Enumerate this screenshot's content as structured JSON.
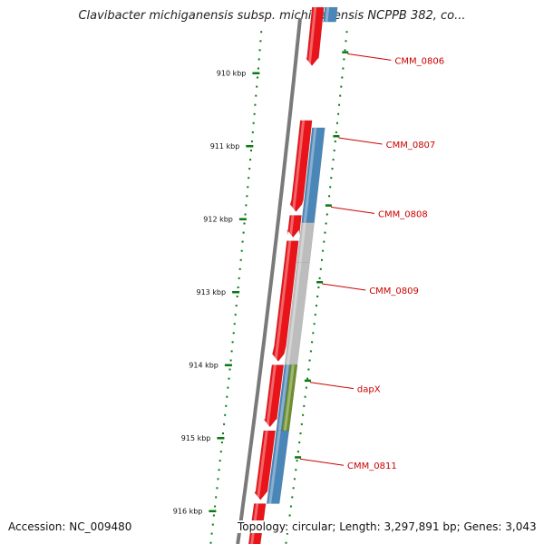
{
  "title": "Clavibacter michiganensis subsp. michiganensis NCPPB 382, co...",
  "footer": {
    "accession": "Accession: NC_009480",
    "topology": "Topology: circular; Length: 3,297,891 bp; Genes: 3,043"
  },
  "colors": {
    "backbone": "#7a7a7a",
    "forward_gene": "#e8141a",
    "reverse_gene": "#4a86b8",
    "pseudo_gene": "#bdbdbd",
    "other_gene": "#6e8f2a",
    "tick": "#0a7a14",
    "label": "#cc0000"
  },
  "chart_data": {
    "type": "genome_map",
    "ticks": [
      {
        "label": "910 kbp",
        "kbp": 910
      },
      {
        "label": "911 kbp",
        "kbp": 911
      },
      {
        "label": "912 kbp",
        "kbp": 912
      },
      {
        "label": "913 kbp",
        "kbp": 913
      },
      {
        "label": "914 kbp",
        "kbp": 914
      },
      {
        "label": "915 kbp",
        "kbp": 915
      },
      {
        "label": "916 kbp",
        "kbp": 916
      }
    ],
    "forward_genes": [
      {
        "start_kbp": 909.1,
        "end_kbp": 909.9
      },
      {
        "start_kbp": 910.65,
        "end_kbp": 911.9
      },
      {
        "start_kbp": 911.95,
        "end_kbp": 912.25
      },
      {
        "start_kbp": 912.3,
        "end_kbp": 913.95
      },
      {
        "start_kbp": 914.0,
        "end_kbp": 914.85
      },
      {
        "start_kbp": 914.9,
        "end_kbp": 915.85
      },
      {
        "start_kbp": 915.9,
        "end_kbp": 916.8
      }
    ],
    "reverse_genes": [
      {
        "name": "",
        "start_kbp": 909.1,
        "end_kbp": 909.3,
        "kind": "reverse"
      },
      {
        "name": "CMM_0806",
        "start_kbp": 909.3,
        "end_kbp": 909.75,
        "kind": "none"
      },
      {
        "name": "CMM_0807",
        "start_kbp": 910.75,
        "end_kbp": 912.05,
        "kind": "reverse"
      },
      {
        "name": "CMM_0808",
        "start_kbp": 912.05,
        "end_kbp": 912.6,
        "kind": "pseudo"
      },
      {
        "name": "CMM_0809",
        "start_kbp": 912.6,
        "end_kbp": 914.0,
        "kind": "pseudo"
      },
      {
        "name": "",
        "start_kbp": 914.0,
        "end_kbp": 914.9,
        "kind": "reverse"
      },
      {
        "name": "dapX",
        "start_kbp": 914.0,
        "end_kbp": 914.9,
        "kind": "other"
      },
      {
        "name": "CMM_0811",
        "start_kbp": 914.9,
        "end_kbp": 915.9,
        "kind": "reverse"
      }
    ],
    "labels": [
      {
        "text": "CMM_0806",
        "kbp": 909.8
      },
      {
        "text": "CMM_0807",
        "kbp": 910.95
      },
      {
        "text": "CMM_0808",
        "kbp": 911.9
      },
      {
        "text": "CMM_0809",
        "kbp": 912.95
      },
      {
        "text": "dapX",
        "kbp": 914.3
      },
      {
        "text": "CMM_0811",
        "kbp": 915.35
      }
    ]
  }
}
